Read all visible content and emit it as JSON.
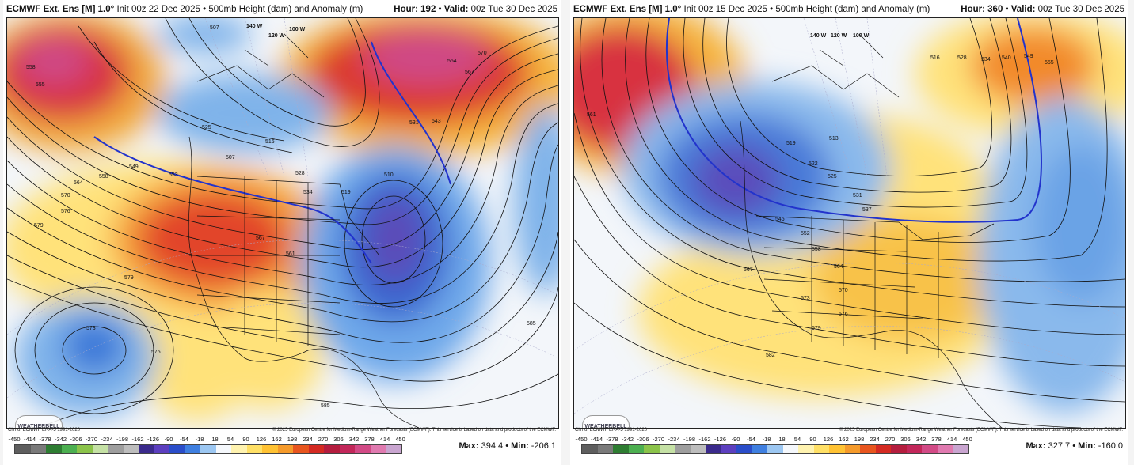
{
  "panels": [
    {
      "title_model": "ECMWF Ext. Ens [M] 1.0°",
      "title_init": "Init 00z 22 Dec 2025",
      "title_field": "500mb Height (dam) and Anomaly (m)",
      "hour_label": "Hour:",
      "hour": "192",
      "valid_label": "Valid:",
      "valid": "00z Tue 30 Dec 2025",
      "climo": "Climo: ECMWF ERA-5 1991-2020",
      "copyright": "© 2025 European Centre for Medium-Range Weather Forecasts (ECMWF). This service is based on data and products of the ECMWF.",
      "max_label": "Max:",
      "max": "394.4",
      "min_label": "Min:",
      "min": "-206.1",
      "logo": "WEATHERBELL",
      "contour_labels": [
        "507",
        "558",
        "555",
        "570",
        "564",
        "567",
        "558",
        "549",
        "553",
        "564",
        "570",
        "576",
        "579",
        "525",
        "516",
        "507",
        "528",
        "534",
        "510",
        "519",
        "567",
        "561",
        "579",
        "573",
        "576",
        "585",
        "585",
        "531",
        "543"
      ],
      "meridian_labels": [
        "140 W",
        "120 W",
        "100 W"
      ]
    },
    {
      "title_model": "ECMWF Ext. Ens [M] 1.0°",
      "title_init": "Init 00z 15 Dec 2025",
      "title_field": "500mb Height (dam) and Anomaly (m)",
      "hour_label": "Hour:",
      "hour": "360",
      "valid_label": "Valid:",
      "valid": "00z Tue 30 Dec 2025",
      "climo": "Climo: ECMWF ERA-5 1991-2020",
      "copyright": "© 2025 European Centre for Medium-Range Weather Forecasts (ECMWF). This service is based on data and products of the ECMWF.",
      "max_label": "Max:",
      "max": "327.7",
      "min_label": "Min:",
      "min": "-160.0",
      "logo": "WEATHERBELL",
      "contour_labels": [
        "561",
        "519",
        "522",
        "513",
        "525",
        "531",
        "537",
        "546",
        "552",
        "558",
        "564",
        "567",
        "570",
        "573",
        "576",
        "579",
        "582",
        "516",
        "528",
        "534",
        "540",
        "549",
        "555"
      ],
      "meridian_labels": [
        "140 W",
        "120 W",
        "100 W"
      ]
    }
  ],
  "colorbar": {
    "ticks": [
      "-450",
      "-414",
      "-378",
      "-342",
      "-306",
      "-270",
      "-234",
      "-198",
      "-162",
      "-126",
      "-90",
      "-54",
      "-18",
      "18",
      "54",
      "90",
      "126",
      "162",
      "198",
      "234",
      "270",
      "306",
      "342",
      "378",
      "414",
      "450"
    ],
    "colors": [
      "#5e5e5e",
      "#7a7a7a",
      "#2e7d32",
      "#4caf50",
      "#8bc34a",
      "#c5e1a5",
      "#9e9e9e",
      "#bdbdbd",
      "#3b2a8c",
      "#5c3fbf",
      "#2a4dc9",
      "#3f7fe0",
      "#9cc7f2",
      "#f5f8fc",
      "#fff3b0",
      "#ffe066",
      "#ffc233",
      "#f59a2a",
      "#e8551e",
      "#d42a22",
      "#b41d3e",
      "#c2275a",
      "#d24a86",
      "#e07ab0",
      "#c9a5d0"
    ]
  }
}
